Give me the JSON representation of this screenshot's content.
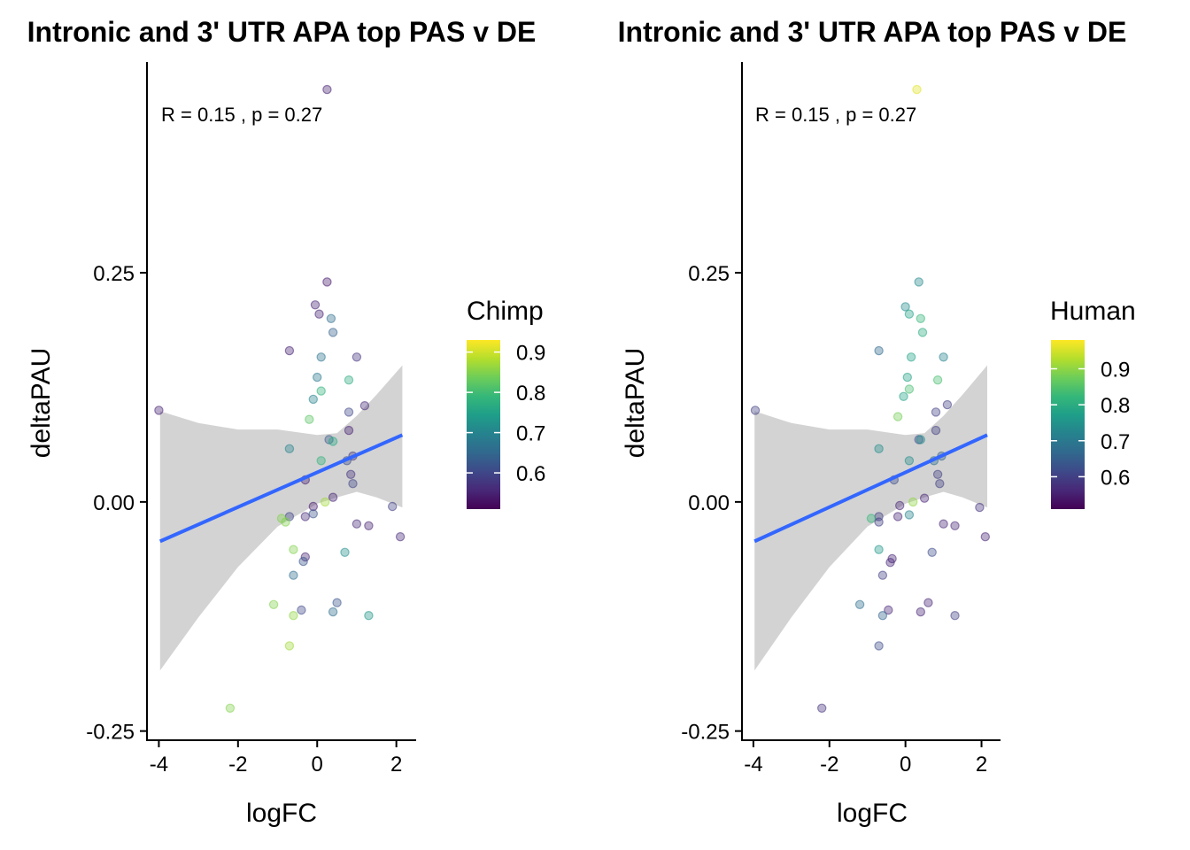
{
  "colors": {
    "regression_line": "#3366FF",
    "confidence_band": "#D3D3D3",
    "viridis": [
      "#440154",
      "#482878",
      "#3E4989",
      "#31688E",
      "#26828E",
      "#1F9E89",
      "#35B779",
      "#6DCD59",
      "#B4DE2C",
      "#FDE725"
    ]
  },
  "chart_data": [
    {
      "type": "scatter",
      "title": "Intronic and 3' UTR APA top PAS v DE",
      "xlabel": "logFC",
      "ylabel": "deltaPAU",
      "xlim": [
        -4.3,
        2.5
      ],
      "ylim": [
        -0.26,
        0.48
      ],
      "x_ticks": [
        -4,
        -2,
        0,
        2
      ],
      "x_tick_labels": [
        "-4",
        "-2",
        "0",
        "2"
      ],
      "y_ticks": [
        -0.25,
        0.0,
        0.25
      ],
      "y_tick_labels": [
        "-0.25",
        "0.00",
        "0.25"
      ],
      "annotation": "R = 0.15 , p = 0.27",
      "color_legend": {
        "title": "Chimp",
        "range": [
          0.51,
          0.93
        ],
        "ticks": [
          0.6,
          0.7,
          0.8,
          0.9
        ],
        "tick_labels": [
          "0.6",
          "0.7",
          "0.8",
          "0.9"
        ]
      },
      "regression": {
        "x_range": [
          -3.97,
          2.15
        ],
        "y_at_range": [
          -0.043,
          0.073
        ],
        "band": [
          [
            -3.97,
            -0.184,
            0.099
          ],
          [
            -3.0,
            -0.126,
            0.086
          ],
          [
            -2.0,
            -0.071,
            0.079
          ],
          [
            -1.0,
            -0.027,
            0.079
          ],
          [
            0.0,
            -0.002,
            0.073
          ],
          [
            0.5,
            0.005,
            0.075
          ],
          [
            1.0,
            0.011,
            0.094
          ],
          [
            1.5,
            0.005,
            0.117
          ],
          [
            2.15,
            -0.006,
            0.149
          ]
        ]
      },
      "points": [
        {
          "x": 0.25,
          "y": 0.45,
          "c": 0.55
        },
        {
          "x": 0.25,
          "y": 0.24,
          "c": 0.54
        },
        {
          "x": -0.05,
          "y": 0.215,
          "c": 0.55
        },
        {
          "x": 0.05,
          "y": 0.205,
          "c": 0.55
        },
        {
          "x": 0.35,
          "y": 0.2,
          "c": 0.66
        },
        {
          "x": 0.4,
          "y": 0.185,
          "c": 0.64
        },
        {
          "x": -0.7,
          "y": 0.165,
          "c": 0.55
        },
        {
          "x": 0.1,
          "y": 0.158,
          "c": 0.67
        },
        {
          "x": 1.0,
          "y": 0.158,
          "c": 0.57
        },
        {
          "x": 0.0,
          "y": 0.136,
          "c": 0.68
        },
        {
          "x": 0.8,
          "y": 0.133,
          "c": 0.77
        },
        {
          "x": -0.1,
          "y": 0.112,
          "c": 0.7
        },
        {
          "x": 0.1,
          "y": 0.121,
          "c": 0.78
        },
        {
          "x": -4.0,
          "y": 0.1,
          "c": 0.55
        },
        {
          "x": 1.2,
          "y": 0.105,
          "c": 0.56
        },
        {
          "x": 0.8,
          "y": 0.098,
          "c": 0.6
        },
        {
          "x": -0.2,
          "y": 0.09,
          "c": 0.82
        },
        {
          "x": 0.8,
          "y": 0.078,
          "c": 0.55
        },
        {
          "x": 0.3,
          "y": 0.068,
          "c": 0.63
        },
        {
          "x": 0.4,
          "y": 0.066,
          "c": 0.76
        },
        {
          "x": -0.7,
          "y": 0.058,
          "c": 0.7
        },
        {
          "x": 0.9,
          "y": 0.05,
          "c": 0.58
        },
        {
          "x": 0.75,
          "y": 0.045,
          "c": 0.61
        },
        {
          "x": 0.1,
          "y": 0.045,
          "c": 0.78
        },
        {
          "x": 0.85,
          "y": 0.03,
          "c": 0.57
        },
        {
          "x": -0.3,
          "y": 0.024,
          "c": 0.55
        },
        {
          "x": 0.9,
          "y": 0.02,
          "c": 0.6
        },
        {
          "x": 0.2,
          "y": 0.0,
          "c": 0.87
        },
        {
          "x": 0.4,
          "y": 0.005,
          "c": 0.55
        },
        {
          "x": -0.1,
          "y": -0.005,
          "c": 0.54
        },
        {
          "x": 1.9,
          "y": -0.005,
          "c": 0.59
        },
        {
          "x": -0.1,
          "y": -0.013,
          "c": 0.62
        },
        {
          "x": -0.3,
          "y": -0.016,
          "c": 0.56
        },
        {
          "x": -0.7,
          "y": -0.016,
          "c": 0.6
        },
        {
          "x": -0.9,
          "y": -0.018,
          "c": 0.85
        },
        {
          "x": -0.8,
          "y": -0.022,
          "c": 0.85
        },
        {
          "x": 1.0,
          "y": -0.024,
          "c": 0.56
        },
        {
          "x": 1.3,
          "y": -0.026,
          "c": 0.55
        },
        {
          "x": 2.1,
          "y": -0.038,
          "c": 0.56
        },
        {
          "x": -0.6,
          "y": -0.052,
          "c": 0.85
        },
        {
          "x": 0.7,
          "y": -0.055,
          "c": 0.72
        },
        {
          "x": -0.3,
          "y": -0.06,
          "c": 0.55
        },
        {
          "x": -0.35,
          "y": -0.065,
          "c": 0.62
        },
        {
          "x": -0.6,
          "y": -0.08,
          "c": 0.66
        },
        {
          "x": 0.5,
          "y": -0.11,
          "c": 0.62
        },
        {
          "x": -1.1,
          "y": -0.112,
          "c": 0.85
        },
        {
          "x": -0.4,
          "y": -0.118,
          "c": 0.6
        },
        {
          "x": 0.4,
          "y": -0.12,
          "c": 0.66
        },
        {
          "x": -0.6,
          "y": -0.124,
          "c": 0.86
        },
        {
          "x": 1.3,
          "y": -0.124,
          "c": 0.73
        },
        {
          "x": -0.7,
          "y": -0.157,
          "c": 0.87
        },
        {
          "x": -2.2,
          "y": -0.225,
          "c": 0.85
        }
      ]
    },
    {
      "type": "scatter",
      "title": "Intronic and 3' UTR APA top PAS v DE",
      "xlabel": "logFC",
      "ylabel": "deltaPAU",
      "xlim": [
        -4.3,
        2.5
      ],
      "ylim": [
        -0.26,
        0.48
      ],
      "x_ticks": [
        -4,
        -2,
        0,
        2
      ],
      "x_tick_labels": [
        "-4",
        "-2",
        "0",
        "2"
      ],
      "y_ticks": [
        -0.25,
        0.0,
        0.25
      ],
      "y_tick_labels": [
        "-0.25",
        "0.00",
        "0.25"
      ],
      "annotation": "R = 0.15 , p = 0.27",
      "color_legend": {
        "title": "Human",
        "range": [
          0.51,
          0.98
        ],
        "ticks": [
          0.6,
          0.7,
          0.8,
          0.9
        ],
        "tick_labels": [
          "0.6",
          "0.7",
          "0.8",
          "0.9"
        ]
      },
      "regression": {
        "x_range": [
          -3.97,
          2.15
        ],
        "y_at_range": [
          -0.043,
          0.073
        ],
        "band": [
          [
            -3.97,
            -0.184,
            0.099
          ],
          [
            -3.0,
            -0.126,
            0.086
          ],
          [
            -2.0,
            -0.071,
            0.079
          ],
          [
            -1.0,
            -0.027,
            0.079
          ],
          [
            0.0,
            -0.002,
            0.073
          ],
          [
            0.5,
            0.005,
            0.075
          ],
          [
            1.0,
            0.011,
            0.094
          ],
          [
            1.5,
            0.005,
            0.117
          ],
          [
            2.15,
            -0.006,
            0.149
          ]
        ]
      },
      "points": [
        {
          "x": 0.3,
          "y": 0.45,
          "c": 0.96
        },
        {
          "x": 0.35,
          "y": 0.24,
          "c": 0.73
        },
        {
          "x": 0.0,
          "y": 0.213,
          "c": 0.74
        },
        {
          "x": 0.1,
          "y": 0.205,
          "c": 0.78
        },
        {
          "x": 0.4,
          "y": 0.2,
          "c": 0.82
        },
        {
          "x": 0.45,
          "y": 0.185,
          "c": 0.8
        },
        {
          "x": -0.7,
          "y": 0.165,
          "c": 0.67
        },
        {
          "x": 0.15,
          "y": 0.158,
          "c": 0.78
        },
        {
          "x": 1.0,
          "y": 0.158,
          "c": 0.72
        },
        {
          "x": 0.05,
          "y": 0.136,
          "c": 0.78
        },
        {
          "x": 0.85,
          "y": 0.133,
          "c": 0.84
        },
        {
          "x": -0.05,
          "y": 0.115,
          "c": 0.78
        },
        {
          "x": 0.1,
          "y": 0.123,
          "c": 0.84
        },
        {
          "x": -3.95,
          "y": 0.1,
          "c": 0.6
        },
        {
          "x": 1.1,
          "y": 0.106,
          "c": 0.6
        },
        {
          "x": 0.8,
          "y": 0.098,
          "c": 0.6
        },
        {
          "x": -0.2,
          "y": 0.093,
          "c": 0.88
        },
        {
          "x": 0.8,
          "y": 0.078,
          "c": 0.6
        },
        {
          "x": 0.35,
          "y": 0.068,
          "c": 0.62
        },
        {
          "x": 0.4,
          "y": 0.068,
          "c": 0.74
        },
        {
          "x": -0.7,
          "y": 0.058,
          "c": 0.74
        },
        {
          "x": 0.95,
          "y": 0.05,
          "c": 0.66
        },
        {
          "x": 0.75,
          "y": 0.045,
          "c": 0.68
        },
        {
          "x": 0.1,
          "y": 0.045,
          "c": 0.74
        },
        {
          "x": 0.85,
          "y": 0.03,
          "c": 0.6
        },
        {
          "x": -0.3,
          "y": 0.024,
          "c": 0.62
        },
        {
          "x": 0.9,
          "y": 0.02,
          "c": 0.6
        },
        {
          "x": 0.2,
          "y": 0.0,
          "c": 0.9
        },
        {
          "x": 0.5,
          "y": 0.004,
          "c": 0.56
        },
        {
          "x": -0.15,
          "y": -0.004,
          "c": 0.56
        },
        {
          "x": 1.95,
          "y": -0.006,
          "c": 0.58
        },
        {
          "x": 0.1,
          "y": -0.014,
          "c": 0.72
        },
        {
          "x": -0.2,
          "y": -0.016,
          "c": 0.56
        },
        {
          "x": -0.7,
          "y": -0.016,
          "c": 0.6
        },
        {
          "x": -0.9,
          "y": -0.018,
          "c": 0.82
        },
        {
          "x": -0.7,
          "y": -0.022,
          "c": 0.6
        },
        {
          "x": 1.0,
          "y": -0.024,
          "c": 0.56
        },
        {
          "x": 1.3,
          "y": -0.026,
          "c": 0.56
        },
        {
          "x": 2.1,
          "y": -0.038,
          "c": 0.56
        },
        {
          "x": -0.7,
          "y": -0.052,
          "c": 0.76
        },
        {
          "x": 0.7,
          "y": -0.055,
          "c": 0.62
        },
        {
          "x": -0.35,
          "y": -0.062,
          "c": 0.56
        },
        {
          "x": -0.4,
          "y": -0.066,
          "c": 0.56
        },
        {
          "x": -0.6,
          "y": -0.08,
          "c": 0.6
        },
        {
          "x": 0.6,
          "y": -0.11,
          "c": 0.56
        },
        {
          "x": -1.2,
          "y": -0.112,
          "c": 0.68
        },
        {
          "x": -0.45,
          "y": -0.118,
          "c": 0.56
        },
        {
          "x": 0.4,
          "y": -0.12,
          "c": 0.56
        },
        {
          "x": -0.6,
          "y": -0.124,
          "c": 0.66
        },
        {
          "x": 1.3,
          "y": -0.124,
          "c": 0.6
        },
        {
          "x": -0.7,
          "y": -0.157,
          "c": 0.62
        },
        {
          "x": -2.2,
          "y": -0.225,
          "c": 0.58
        }
      ]
    }
  ]
}
